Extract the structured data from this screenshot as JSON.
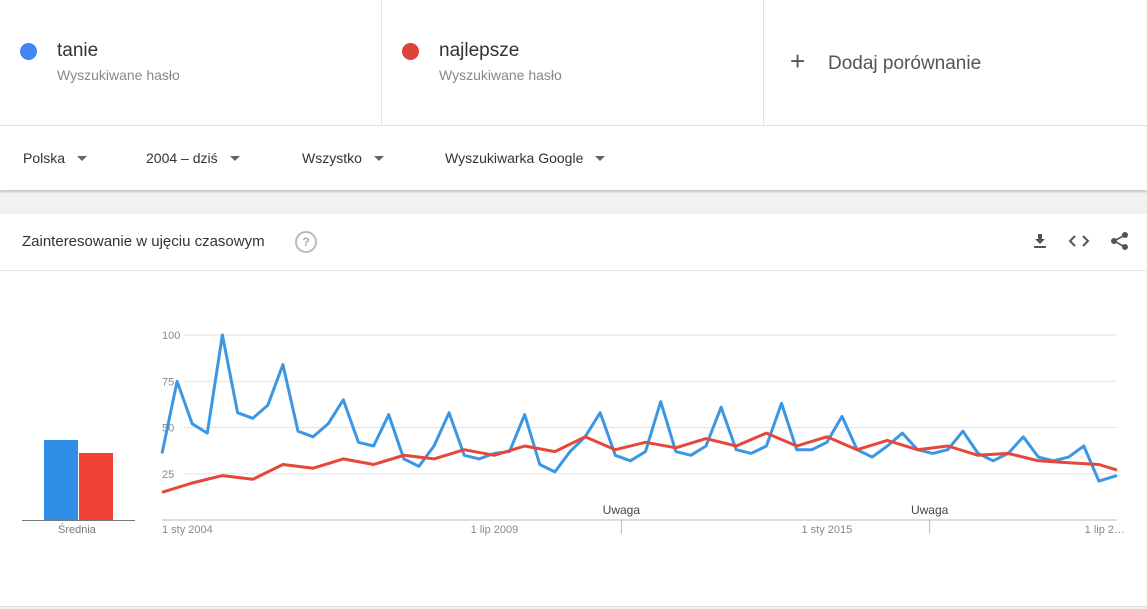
{
  "terms": [
    {
      "name": "tanie",
      "sub": "Wyszukiwane hasło",
      "color": "#4285f4"
    },
    {
      "name": "najlepsze",
      "sub": "Wyszukiwane hasło",
      "color": "#db4437"
    }
  ],
  "add_compare": {
    "plus": "+",
    "label": "Dodaj porównanie"
  },
  "filters": {
    "region": "Polska",
    "time": "2004 – dziś",
    "category": "Wszystko",
    "source": "Wyszukiwarka Google"
  },
  "card": {
    "title": "Zainteresowanie w ujęciu czasowym",
    "help": "?"
  },
  "chart_data": {
    "type": "line",
    "ylim": [
      0,
      100
    ],
    "y_ticks": [
      25,
      50,
      75,
      100
    ],
    "x_range": [
      2004.0,
      2019.8
    ],
    "x_tick_labels": [
      {
        "label": "1 sty 2004",
        "x": 2004.0
      },
      {
        "label": "1 lip 2009",
        "x": 2009.5
      },
      {
        "label": "1 sty 2015",
        "x": 2015.0
      },
      {
        "label": "1 lip 2…",
        "x": 2019.7
      }
    ],
    "annotations": [
      {
        "label": "Uwaga",
        "x": 2011.6
      },
      {
        "label": "Uwaga",
        "x": 2016.7
      }
    ],
    "averages": {
      "label": "Średnia",
      "values": [
        43,
        36
      ]
    },
    "series": [
      {
        "name": "tanie",
        "color": "#3b97e3",
        "x": [
          2004.0,
          2004.25,
          2004.5,
          2004.75,
          2005.0,
          2005.25,
          2005.5,
          2005.75,
          2006.0,
          2006.25,
          2006.5,
          2006.75,
          2007.0,
          2007.25,
          2007.5,
          2007.75,
          2008.0,
          2008.25,
          2008.5,
          2008.75,
          2009.0,
          2009.25,
          2009.5,
          2009.75,
          2010.0,
          2010.25,
          2010.5,
          2010.75,
          2011.0,
          2011.25,
          2011.5,
          2011.75,
          2012.0,
          2012.25,
          2012.5,
          2012.75,
          2013.0,
          2013.25,
          2013.5,
          2013.75,
          2014.0,
          2014.25,
          2014.5,
          2014.75,
          2015.0,
          2015.25,
          2015.5,
          2015.75,
          2016.0,
          2016.25,
          2016.5,
          2016.75,
          2017.0,
          2017.25,
          2017.5,
          2017.75,
          2018.0,
          2018.25,
          2018.5,
          2018.75,
          2019.0,
          2019.25,
          2019.5,
          2019.8
        ],
        "values": [
          36,
          75,
          52,
          47,
          100,
          58,
          55,
          62,
          84,
          48,
          45,
          52,
          65,
          42,
          40,
          57,
          33,
          29,
          40,
          58,
          35,
          33,
          36,
          37,
          57,
          30,
          26,
          37,
          45,
          58,
          35,
          32,
          37,
          64,
          37,
          35,
          40,
          61,
          38,
          36,
          40,
          63,
          38,
          38,
          42,
          56,
          38,
          34,
          40,
          47,
          38,
          36,
          38,
          48,
          36,
          32,
          36,
          45,
          34,
          32,
          34,
          40,
          21,
          24
        ]
      },
      {
        "name": "najlepsze",
        "color": "#e5473a",
        "x": [
          2004.0,
          2004.5,
          2005.0,
          2005.5,
          2006.0,
          2006.5,
          2007.0,
          2007.5,
          2008.0,
          2008.5,
          2009.0,
          2009.5,
          2010.0,
          2010.5,
          2011.0,
          2011.5,
          2012.0,
          2012.5,
          2013.0,
          2013.5,
          2014.0,
          2014.5,
          2015.0,
          2015.5,
          2016.0,
          2016.5,
          2017.0,
          2017.5,
          2018.0,
          2018.5,
          2019.0,
          2019.5,
          2019.8
        ],
        "values": [
          15,
          20,
          24,
          22,
          30,
          28,
          33,
          30,
          35,
          33,
          38,
          35,
          40,
          37,
          45,
          38,
          42,
          39,
          44,
          40,
          47,
          40,
          45,
          38,
          43,
          38,
          40,
          35,
          36,
          32,
          31,
          30,
          27
        ]
      }
    ]
  }
}
